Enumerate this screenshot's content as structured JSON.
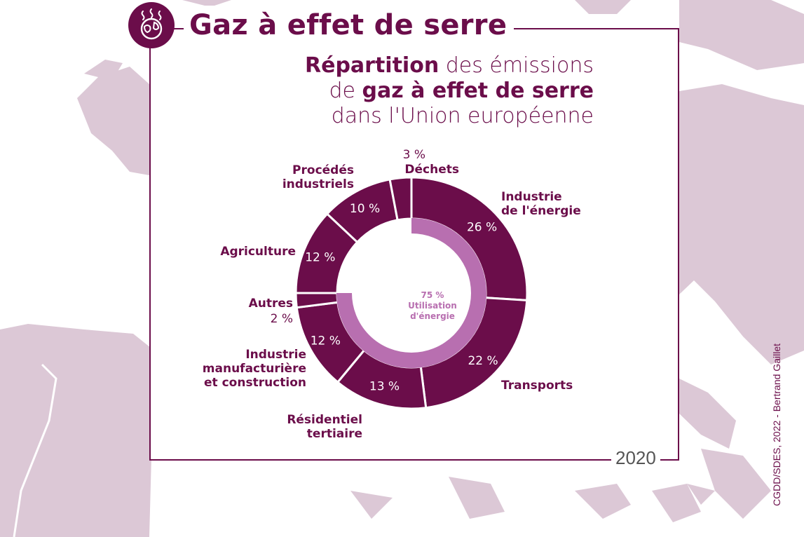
{
  "header": {
    "title": "Gaz à effet de serre",
    "icon": "globe-heat-icon",
    "subtitle_line1_bold": "Répartition",
    "subtitle_line1_rest": " des émissions",
    "subtitle_line2_pre": "de ",
    "subtitle_line2_bold": "gaz à effet de serre",
    "subtitle_line3": "dans l'Union européenne"
  },
  "footer": {
    "year": "2020",
    "credit": "CGDD/SDES, 2022 - Bertrand Gaillet"
  },
  "colors": {
    "primary": "#6b0d4a",
    "inner_ring": "#b86fb0",
    "map": "#dcc8d6"
  },
  "chart_data": {
    "type": "pie",
    "variant": "donut",
    "slices": [
      {
        "label": "Industrie de l'énergie",
        "value": 26,
        "value_text": "26 %"
      },
      {
        "label": "Transports",
        "value": 22,
        "value_text": "22 %"
      },
      {
        "label": "Résidentiel tertiaire",
        "value": 13,
        "value_text": "13 %"
      },
      {
        "label": "Industrie manufacturière et construction",
        "value": 12,
        "value_text": "12 %"
      },
      {
        "label": "Autres",
        "value": 2,
        "value_text": "2 %"
      },
      {
        "label": "Agriculture",
        "value": 12,
        "value_text": "12 %"
      },
      {
        "label": "Procédés industriels",
        "value": 10,
        "value_text": "10 %"
      },
      {
        "label": "Déchets",
        "value": 3,
        "value_text": "3 %"
      }
    ],
    "inner_ring": {
      "value": 75,
      "value_text": "75 %",
      "label": "Utilisation d'énergie"
    }
  }
}
